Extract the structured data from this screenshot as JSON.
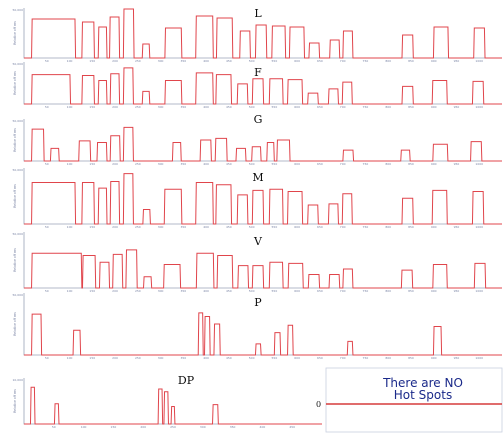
{
  "chart_data": [
    {
      "type": "line",
      "title": "L",
      "ylabel": "Relative off ms",
      "ymax_tick": "50,000",
      "x_ticks": [
        "50",
        "100",
        "150",
        "200",
        "250",
        "300",
        "350",
        "400",
        "450",
        "500",
        "550",
        "600",
        "650",
        "700",
        "750",
        "800",
        "850",
        "900",
        "950",
        "1000"
      ],
      "pulses": [
        [
          12,
          82,
          0.78
        ],
        [
          92,
          112,
          0.72
        ],
        [
          118,
          132,
          0.62
        ],
        [
          136,
          152,
          0.82
        ],
        [
          158,
          175,
          0.98
        ],
        [
          188,
          200,
          0.28
        ],
        [
          224,
          251,
          0.6
        ],
        [
          273,
          301,
          0.84
        ],
        [
          306,
          332,
          0.8
        ],
        [
          343,
          360,
          0.54
        ],
        [
          368,
          386,
          0.66
        ],
        [
          394,
          416,
          0.64
        ],
        [
          422,
          446,
          0.62
        ],
        [
          453,
          470,
          0.3
        ],
        [
          486,
          502,
          0.36
        ],
        [
          507,
          523,
          0.54
        ],
        [
          601,
          619,
          0.46
        ],
        [
          651,
          675,
          0.62
        ],
        [
          715,
          733,
          0.6
        ]
      ]
    },
    {
      "type": "line",
      "title": "F",
      "ylabel": "Relative off ms",
      "ymax_tick": "50,000",
      "x_ticks": [
        "50",
        "100",
        "150",
        "200",
        "250",
        "300",
        "350",
        "400",
        "450",
        "500",
        "550",
        "600",
        "650",
        "700",
        "750",
        "800",
        "850",
        "900",
        "950",
        "1000"
      ],
      "pulses": [
        [
          12,
          74,
          0.7
        ],
        [
          92,
          112,
          0.68
        ],
        [
          118,
          132,
          0.56
        ],
        [
          137,
          152,
          0.72
        ],
        [
          158,
          174,
          0.86
        ],
        [
          188,
          200,
          0.3
        ],
        [
          224,
          251,
          0.56
        ],
        [
          273,
          301,
          0.74
        ],
        [
          305,
          330,
          0.7
        ],
        [
          339,
          356,
          0.48
        ],
        [
          363,
          381,
          0.6
        ],
        [
          390,
          412,
          0.6
        ],
        [
          419,
          443,
          0.58
        ],
        [
          451,
          468,
          0.26
        ],
        [
          484,
          500,
          0.36
        ],
        [
          506,
          522,
          0.52
        ],
        [
          601,
          619,
          0.42
        ],
        [
          649,
          673,
          0.56
        ],
        [
          713,
          731,
          0.54
        ]
      ]
    },
    {
      "type": "line",
      "title": "G",
      "ylabel": "Relative off ms",
      "ymax_tick": "50,000",
      "x_ticks": [
        "50",
        "100",
        "150",
        "200",
        "250",
        "300",
        "350",
        "400",
        "450",
        "500",
        "550",
        "600",
        "650",
        "700",
        "750",
        "800",
        "850",
        "900",
        "950",
        "1000"
      ],
      "pulses": [
        [
          12,
          32,
          0.76
        ],
        [
          42,
          56,
          0.3
        ],
        [
          87,
          106,
          0.48
        ],
        [
          116,
          132,
          0.44
        ],
        [
          137,
          153,
          0.6
        ],
        [
          158,
          174,
          0.8
        ],
        [
          236,
          250,
          0.44
        ],
        [
          280,
          298,
          0.5
        ],
        [
          304,
          323,
          0.54
        ],
        [
          337,
          353,
          0.3
        ],
        [
          362,
          377,
          0.34
        ],
        [
          386,
          398,
          0.44
        ],
        [
          402,
          423,
          0.5
        ],
        [
          507,
          524,
          0.26
        ],
        [
          599,
          614,
          0.26
        ],
        [
          650,
          674,
          0.4
        ],
        [
          710,
          728,
          0.46
        ]
      ]
    },
    {
      "type": "line",
      "title": "M",
      "ylabel": "Relative off ms",
      "ymax_tick": "50,000",
      "x_ticks": [
        "50",
        "100",
        "150",
        "200",
        "250",
        "300",
        "350",
        "400",
        "450",
        "500",
        "550",
        "600",
        "650",
        "700",
        "750",
        "800",
        "850",
        "900",
        "950",
        "1000"
      ],
      "pulses": [
        [
          12,
          82,
          0.74
        ],
        [
          92,
          112,
          0.74
        ],
        [
          118,
          132,
          0.64
        ],
        [
          137,
          152,
          0.76
        ],
        [
          158,
          174,
          0.9
        ],
        [
          189,
          201,
          0.26
        ],
        [
          223,
          251,
          0.62
        ],
        [
          273,
          301,
          0.74
        ],
        [
          305,
          330,
          0.7
        ],
        [
          339,
          356,
          0.52
        ],
        [
          363,
          381,
          0.6
        ],
        [
          390,
          412,
          0.62
        ],
        [
          419,
          443,
          0.58
        ],
        [
          451,
          468,
          0.34
        ],
        [
          484,
          500,
          0.36
        ],
        [
          506,
          522,
          0.54
        ],
        [
          601,
          619,
          0.46
        ],
        [
          649,
          673,
          0.6
        ],
        [
          713,
          731,
          0.58
        ]
      ]
    },
    {
      "type": "line",
      "title": "V",
      "ylabel": "Relative off ms",
      "ymax_tick": "50,000",
      "x_ticks": [
        "50",
        "100",
        "150",
        "200",
        "250",
        "300",
        "350",
        "400",
        "450",
        "500",
        "550",
        "600",
        "650",
        "700",
        "750",
        "800",
        "850",
        "900",
        "950",
        "1000"
      ],
      "pulses": [
        [
          12,
          92,
          0.62
        ],
        [
          93,
          114,
          0.58
        ],
        [
          120,
          136,
          0.46
        ],
        [
          141,
          157,
          0.6
        ],
        [
          162,
          180,
          0.68
        ],
        [
          190,
          203,
          0.2
        ],
        [
          222,
          249,
          0.42
        ],
        [
          274,
          302,
          0.62
        ],
        [
          307,
          332,
          0.58
        ],
        [
          340,
          357,
          0.4
        ],
        [
          363,
          381,
          0.4
        ],
        [
          390,
          412,
          0.46
        ],
        [
          420,
          444,
          0.44
        ],
        [
          452,
          470,
          0.24
        ],
        [
          485,
          502,
          0.24
        ],
        [
          507,
          523,
          0.34
        ],
        [
          600,
          618,
          0.32
        ],
        [
          650,
          673,
          0.42
        ],
        [
          716,
          734,
          0.44
        ]
      ]
    },
    {
      "type": "line",
      "title": "P",
      "ylabel": "Relative off ms",
      "ymax_tick": "50,000",
      "x_ticks": [
        "50",
        "100",
        "150",
        "200",
        "250",
        "300",
        "350",
        "400",
        "450",
        "500",
        "550",
        "600",
        "650",
        "700",
        "750",
        "800",
        "850",
        "900",
        "950",
        "1000"
      ],
      "pulses": [
        [
          12,
          28,
          0.66
        ],
        [
          78,
          90,
          0.4
        ],
        [
          277,
          285,
          0.68
        ],
        [
          287,
          296,
          0.62
        ],
        [
          302,
          312,
          0.5
        ],
        [
          368,
          377,
          0.18
        ],
        [
          398,
          408,
          0.36
        ],
        [
          419,
          428,
          0.48
        ],
        [
          514,
          523,
          0.22
        ],
        [
          651,
          664,
          0.46
        ]
      ]
    },
    {
      "type": "line",
      "title": "DP",
      "ylabel": "Relative off ms",
      "ymax_tick": "10,000",
      "x_ticks": [
        "50",
        "100",
        "150",
        "200",
        "250",
        "300",
        "350",
        "400",
        "450"
      ],
      "pulses": [
        [
          10,
          17,
          0.8
        ],
        [
          47,
          54,
          0.44
        ],
        [
          207,
          214,
          0.76
        ],
        [
          216,
          223,
          0.7
        ],
        [
          227,
          233,
          0.38
        ],
        [
          291,
          300,
          0.42
        ]
      ]
    },
    {
      "type": "line",
      "title": "",
      "annotation": "There are NO Hot Spots",
      "ylabel": "0",
      "series": [
        {
          "values": [
            0,
            0
          ]
        }
      ]
    }
  ]
}
